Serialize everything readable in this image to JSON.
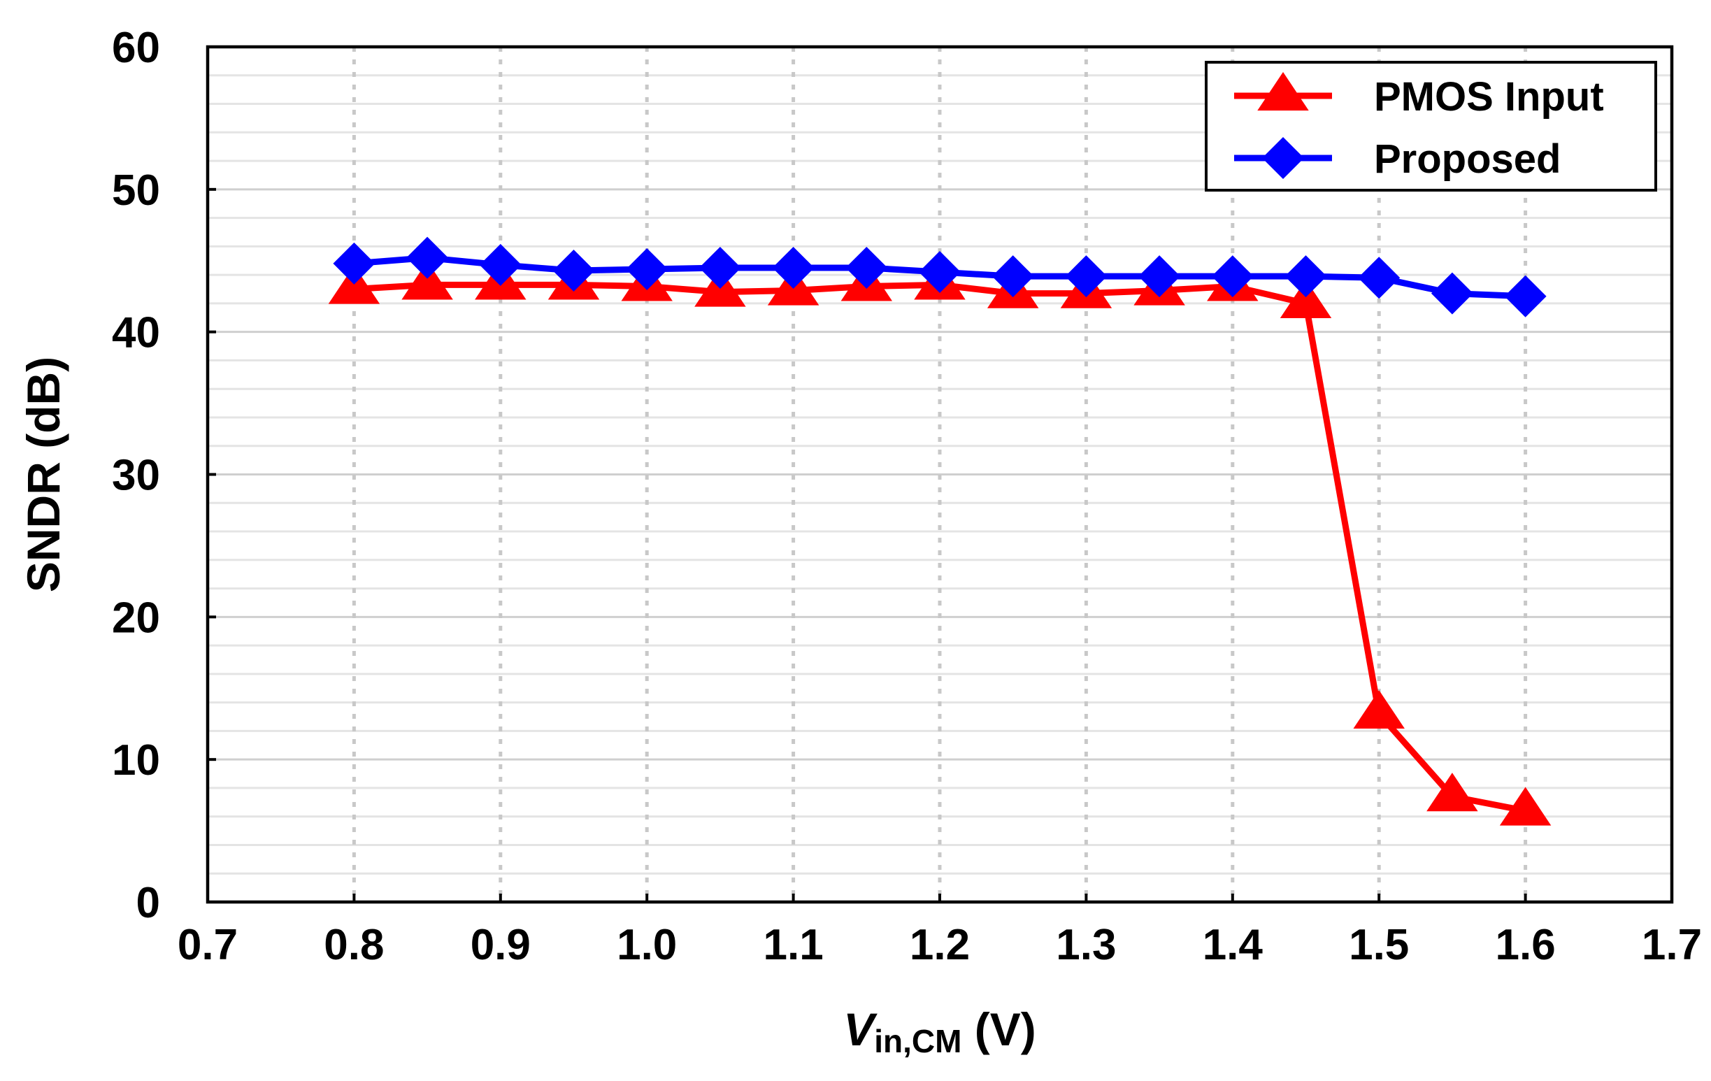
{
  "chart_data": {
    "type": "line",
    "title": "",
    "xlabel": {
      "main": "V",
      "subscript": "in,CM",
      "unit": " (V)"
    },
    "ylabel": "SNDR (dB)",
    "xlim": [
      0.7,
      1.7
    ],
    "ylim": [
      0,
      60
    ],
    "x_ticks": [
      "0.7",
      "0.8",
      "0.9",
      "1.0",
      "1.1",
      "1.2",
      "1.3",
      "1.4",
      "1.5",
      "1.6",
      "1.7"
    ],
    "x_tick_values": [
      0.7,
      0.8,
      0.9,
      1.0,
      1.1,
      1.2,
      1.3,
      1.4,
      1.5,
      1.6,
      1.7
    ],
    "y_ticks": [
      "0",
      "10",
      "20",
      "30",
      "40",
      "50",
      "60"
    ],
    "y_tick_values": [
      0,
      10,
      20,
      30,
      40,
      50,
      60
    ],
    "y_minor_step": 2,
    "grid": true,
    "legend_position": "top-right",
    "x": [
      0.8,
      0.85,
      0.9,
      0.95,
      1.0,
      1.05,
      1.1,
      1.15,
      1.2,
      1.25,
      1.3,
      1.35,
      1.4,
      1.45,
      1.5,
      1.55,
      1.6
    ],
    "series": [
      {
        "name": "PMOS Input",
        "color": "#ff0000",
        "marker": "triangle",
        "values": [
          43.0,
          43.3,
          43.3,
          43.3,
          43.2,
          42.8,
          42.9,
          43.2,
          43.3,
          42.7,
          42.7,
          42.9,
          43.2,
          42.0,
          13.2,
          7.4,
          6.4
        ]
      },
      {
        "name": "Proposed",
        "color": "#0000ff",
        "marker": "diamond",
        "values": [
          44.8,
          45.2,
          44.7,
          44.3,
          44.4,
          44.5,
          44.5,
          44.5,
          44.2,
          43.9,
          43.9,
          43.9,
          43.9,
          43.9,
          43.8,
          42.7,
          42.5
        ]
      }
    ]
  }
}
